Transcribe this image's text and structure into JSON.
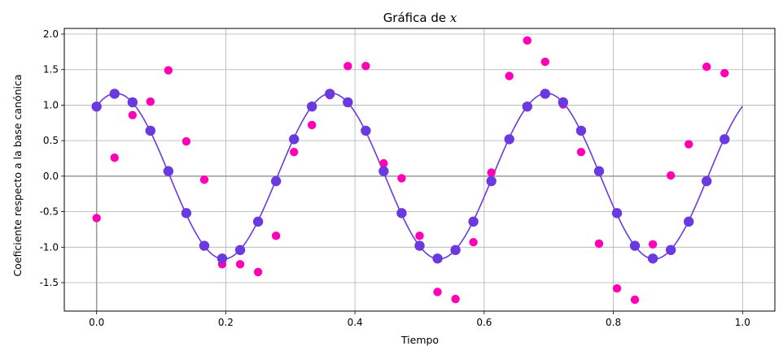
{
  "chart_data": {
    "type": "scatter",
    "title_prefix": "Gráfica de ",
    "title_var": "x",
    "xlabel": "Tiempo",
    "ylabel": "Coeficiente respecto a la base canónica",
    "xlim": [
      -0.05,
      1.05
    ],
    "ylim": [
      -1.9,
      2.08
    ],
    "xticks": [
      "0.0",
      "0.2",
      "0.4",
      "0.6",
      "0.8",
      "1.0"
    ],
    "yticks": [
      "-1.5",
      "-1.0",
      "-0.5",
      "0.0",
      "0.5",
      "1.0",
      "1.5",
      "2.0"
    ],
    "grid": true,
    "colors": {
      "curve": "#6a3ae0",
      "samples": "#6a3ae0",
      "noisy": "#ff00b4",
      "zero_lines": "#999999",
      "grid": "#b0b0b0"
    },
    "curve": {
      "amplitude": 1.167,
      "frequency": 3,
      "phase_rad": 0.567
    },
    "samples": {
      "x": [
        0,
        0.0278,
        0.0556,
        0.0833,
        0.1111,
        0.1389,
        0.1667,
        0.1944,
        0.2222,
        0.25,
        0.2778,
        0.3056,
        0.3333,
        0.3611,
        0.3889,
        0.4167,
        0.4444,
        0.4722,
        0.5,
        0.5278,
        0.5556,
        0.5833,
        0.6111,
        0.6389,
        0.6667,
        0.6944,
        0.7222,
        0.75,
        0.7778,
        0.8056,
        0.8333,
        0.8611,
        0.8889,
        0.9167,
        0.9444,
        0.9722
      ],
      "y": [
        0.98,
        1.16,
        1.04,
        0.64,
        0.07,
        -0.52,
        -0.98,
        -1.16,
        -1.04,
        -0.64,
        -0.07,
        0.52,
        0.98,
        1.16,
        1.04,
        0.64,
        0.07,
        -0.52,
        -0.98,
        -1.16,
        -1.04,
        -0.64,
        -0.07,
        0.52,
        0.98,
        1.16,
        1.04,
        0.64,
        0.07,
        -0.52,
        -0.98,
        -1.16,
        -1.04,
        -0.64,
        -0.07,
        0.52
      ]
    },
    "noisy": {
      "x": [
        0,
        0.0278,
        0.0556,
        0.0833,
        0.1111,
        0.1389,
        0.1667,
        0.1944,
        0.2222,
        0.25,
        0.2778,
        0.3056,
        0.3333,
        0.3611,
        0.3889,
        0.4167,
        0.4444,
        0.4722,
        0.5,
        0.5278,
        0.5556,
        0.5833,
        0.6111,
        0.6389,
        0.6667,
        0.6944,
        0.7222,
        0.75,
        0.7778,
        0.8056,
        0.8333,
        0.8611,
        0.8889,
        0.9167,
        0.9444,
        0.9722
      ],
      "y": [
        -0.59,
        0.26,
        0.86,
        1.05,
        1.49,
        0.49,
        -0.05,
        -1.24,
        -1.24,
        -1.35,
        -0.84,
        0.34,
        0.72,
        1.14,
        1.55,
        1.55,
        0.18,
        -0.03,
        -0.84,
        -1.63,
        -1.73,
        -0.93,
        0.05,
        1.41,
        1.91,
        1.61,
        1.01,
        0.34,
        -0.95,
        -1.58,
        -1.74,
        -0.96,
        0.01,
        0.45,
        1.54,
        1.45
      ]
    }
  }
}
